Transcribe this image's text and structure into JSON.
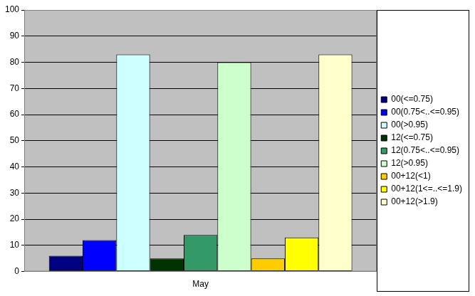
{
  "chart_data": {
    "type": "bar",
    "categories": [
      "May"
    ],
    "series": [
      {
        "name": "00(<=0.75)",
        "color": "#000080",
        "values": [
          6
        ]
      },
      {
        "name": "00(0.75<..<=0.95)",
        "color": "#0000ff",
        "values": [
          12
        ]
      },
      {
        "name": "00(>0.95)",
        "color": "#ccffff",
        "values": [
          83
        ]
      },
      {
        "name": "12(<=0.75)",
        "color": "#003300",
        "values": [
          5
        ]
      },
      {
        "name": "12(0.75<..<=0.95)",
        "color": "#339966",
        "values": [
          14
        ]
      },
      {
        "name": "12(>0.95)",
        "color": "#ccffcc",
        "values": [
          80
        ]
      },
      {
        "name": "00+12(<1)",
        "color": "#ffcc00",
        "values": [
          5
        ]
      },
      {
        "name": "00+12(1<=..<=1.9)",
        "color": "#ffff00",
        "values": [
          13
        ]
      },
      {
        "name": "00+12(>1.9)",
        "color": "#ffffcc",
        "values": [
          83
        ]
      }
    ],
    "ylim": [
      0,
      100
    ],
    "yticks": [
      0,
      10,
      20,
      30,
      40,
      50,
      60,
      70,
      80,
      90,
      100
    ],
    "grid": true,
    "legend": "right"
  }
}
